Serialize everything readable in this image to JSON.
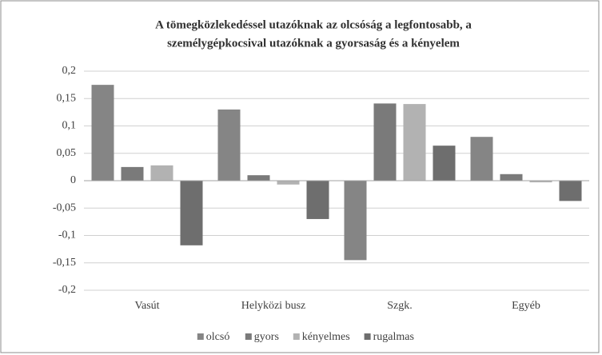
{
  "chart_data": {
    "type": "bar",
    "title": [
      "A tömegközlekedéssel utazóknak az olcsóság a legfontosabb, a",
      "személygépkocsival utazóknak a gyorsaság és a kényelem"
    ],
    "categories": [
      "Vasút",
      "Helyközi busz",
      "Szgk.",
      "Egyéb"
    ],
    "series": [
      {
        "name": "olcsó",
        "color": "#858585",
        "values": [
          0.175,
          0.13,
          -0.145,
          0.08
        ]
      },
      {
        "name": "gyors",
        "color": "#7a7a7a",
        "values": [
          0.025,
          0.01,
          0.141,
          0.012
        ]
      },
      {
        "name": "kényelmes",
        "color": "#b2b2b2",
        "values": [
          0.028,
          -0.007,
          0.14,
          -0.003
        ]
      },
      {
        "name": "rugalmas",
        "color": "#6e6e6e",
        "values": [
          -0.118,
          -0.07,
          0.064,
          -0.037
        ]
      }
    ],
    "ylim": [
      -0.2,
      0.2
    ],
    "yticks": [
      {
        "value": -0.2,
        "label": "-0,2"
      },
      {
        "value": -0.15,
        "label": "-0,15"
      },
      {
        "value": -0.1,
        "label": "-0,1"
      },
      {
        "value": -0.05,
        "label": "-0,05"
      },
      0,
      {
        "value": 0.05,
        "label": "0,05"
      },
      {
        "value": 0.1,
        "label": "0,1"
      },
      {
        "value": 0.15,
        "label": "0,15"
      },
      {
        "value": 0.2,
        "label": "0,2"
      }
    ],
    "grid": true,
    "legend": "bottom"
  }
}
